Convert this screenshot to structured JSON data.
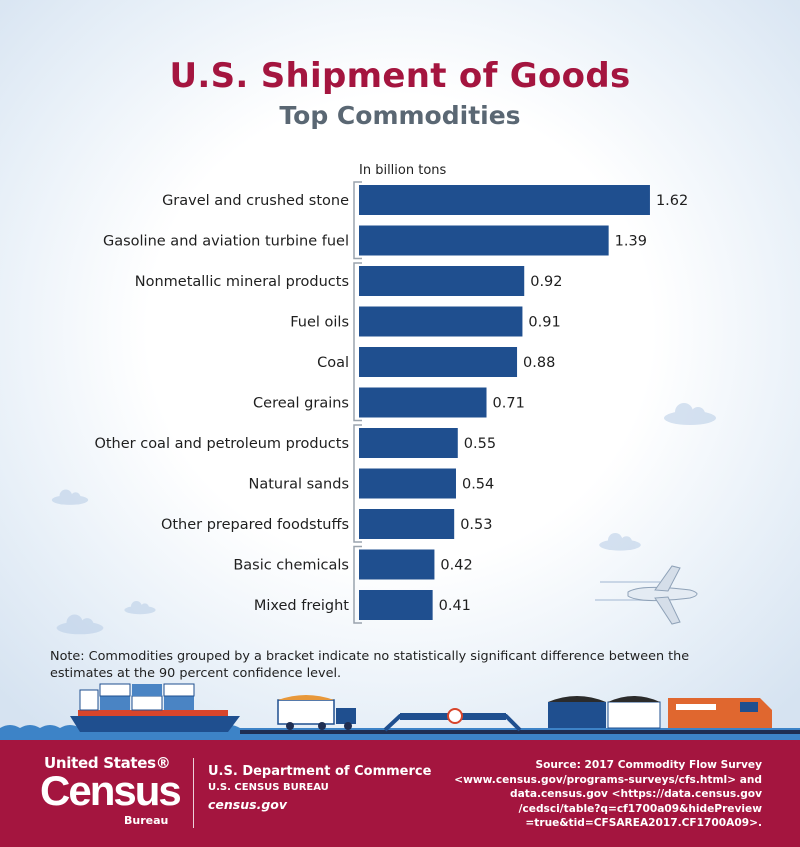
{
  "header": {
    "title": "U.S. Shipment of Goods",
    "subtitle": "Top Commodities"
  },
  "chart_data": {
    "type": "bar",
    "orientation": "horizontal",
    "unit_label": "In billion tons",
    "categories": [
      "Gravel and crushed stone",
      "Gasoline and aviation turbine fuel",
      "Nonmetallic mineral products",
      "Fuel oils",
      "Coal",
      "Cereal grains",
      "Other coal and petroleum products",
      "Natural sands",
      "Other prepared foodstuffs",
      "Basic chemicals",
      "Mixed freight"
    ],
    "values": [
      1.62,
      1.39,
      0.92,
      0.91,
      0.88,
      0.71,
      0.55,
      0.54,
      0.53,
      0.42,
      0.41
    ],
    "value_labels": [
      "1.62",
      "1.39",
      "0.92",
      "0.91",
      "0.88",
      "0.71",
      "0.55",
      "0.54",
      "0.53",
      "0.42",
      "0.41"
    ],
    "brackets": [
      [
        0,
        1
      ],
      [
        2,
        5
      ],
      [
        6,
        8
      ],
      [
        9,
        10
      ]
    ],
    "bar_color": "#1f4f8f",
    "xlim": [
      0,
      1.7
    ]
  },
  "note": "Note: Commodities grouped by a bracket indicate no statistically significant difference between the estimates at the 90 percent confidence level.",
  "footer": {
    "logo_top": "United States®",
    "logo_big": "Census",
    "logo_bureau": "Bureau",
    "department": "U.S. Department of Commerce",
    "bureau": "U.S. CENSUS BUREAU",
    "website": "census.gov",
    "source_lines": [
      "Source: 2017 Commodity Flow Survey",
      "<www.census.gov/programs-surveys/cfs.html> and",
      "data.census.gov <https://data.census.gov",
      "/cedsci/table?q=cf1700a09&hidePreview",
      "=true&tid=CFSAREA2017.CF1700A09>."
    ]
  },
  "colors": {
    "brand": "#a4153f",
    "subtitle": "#5a6773",
    "bar": "#1f4f8f"
  }
}
